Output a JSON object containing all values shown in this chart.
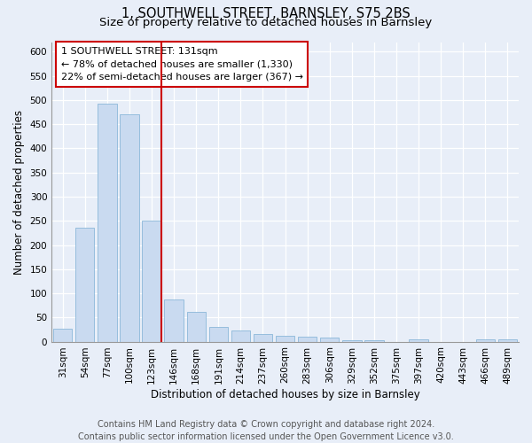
{
  "title": "1, SOUTHWELL STREET, BARNSLEY, S75 2BS",
  "subtitle": "Size of property relative to detached houses in Barnsley",
  "xlabel": "Distribution of detached houses by size in Barnsley",
  "ylabel": "Number of detached properties",
  "categories": [
    "31sqm",
    "54sqm",
    "77sqm",
    "100sqm",
    "123sqm",
    "146sqm",
    "168sqm",
    "191sqm",
    "214sqm",
    "237sqm",
    "260sqm",
    "283sqm",
    "306sqm",
    "329sqm",
    "352sqm",
    "375sqm",
    "397sqm",
    "420sqm",
    "443sqm",
    "466sqm",
    "489sqm"
  ],
  "values": [
    27,
    235,
    493,
    470,
    250,
    88,
    62,
    30,
    23,
    15,
    12,
    10,
    8,
    2,
    2,
    0,
    5,
    0,
    0,
    5,
    5
  ],
  "bar_color": "#c9daf0",
  "bar_edge_color": "#7baed4",
  "property_label": "1 SOUTHWELL STREET: 131sqm",
  "annotation_line1": "← 78% of detached houses are smaller (1,330)",
  "annotation_line2": "22% of semi-detached houses are larger (367) →",
  "vline_x_index": 4,
  "vline_color": "#cc0000",
  "box_edge_color": "#cc0000",
  "ylim": [
    0,
    620
  ],
  "yticks": [
    0,
    50,
    100,
    150,
    200,
    250,
    300,
    350,
    400,
    450,
    500,
    550,
    600
  ],
  "footer_line1": "Contains HM Land Registry data © Crown copyright and database right 2024.",
  "footer_line2": "Contains public sector information licensed under the Open Government Licence v3.0.",
  "background_color": "#e8eef8",
  "plot_background": "#e8eef8",
  "title_fontsize": 10.5,
  "subtitle_fontsize": 9.5,
  "axis_fontsize": 8.5,
  "tick_fontsize": 7.5,
  "annotation_fontsize": 8,
  "footer_fontsize": 7
}
